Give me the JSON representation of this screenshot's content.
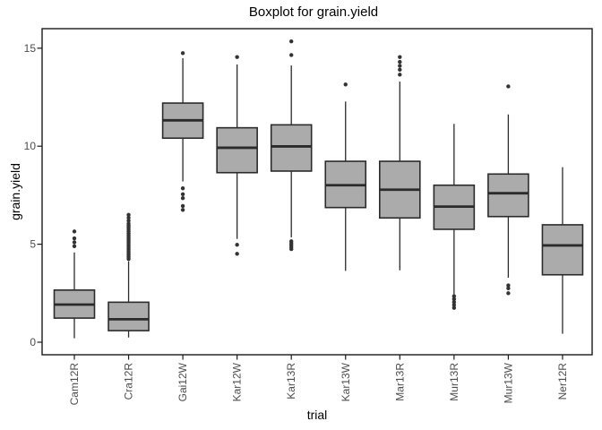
{
  "title": "Boxplot for grain.yield",
  "chart_data": {
    "type": "boxplot",
    "title": "Boxplot for grain.yield",
    "xlabel": "trial",
    "ylabel": "grain.yield",
    "ylim": [
      -0.64,
      16.0
    ],
    "y_ticks": [
      0,
      5,
      10,
      15
    ],
    "grid": false,
    "legend": "none",
    "colors": {
      "box_fill": "#ababab",
      "box_stroke": "#2b2b2b",
      "whisker": "#2b2b2b",
      "outlier": "#333333",
      "panel_border": "#1a1a1a",
      "axis_text": "#4d4d4d",
      "title_text": "#000000"
    },
    "categories": [
      "Cam12R",
      "Cra12R",
      "Gai12W",
      "Kar12W",
      "Kar13R",
      "Kar13W",
      "Mar13R",
      "Mur13R",
      "Mur13W",
      "Ner12R"
    ],
    "series": [
      {
        "trial": "Cam12R",
        "whisker_low": 0.2,
        "q1": 1.23,
        "median": 1.92,
        "q3": 2.66,
        "whisker_high": 4.58,
        "outliers": [
          4.9,
          5.1,
          5.3,
          5.65
        ]
      },
      {
        "trial": "Cra12R",
        "whisker_low": 0.24,
        "q1": 0.59,
        "median": 1.17,
        "q3": 2.04,
        "whisker_high": 4.13,
        "outliers": [
          4.25,
          4.35,
          4.45,
          4.55,
          4.65,
          4.75,
          4.85,
          4.95,
          5.05,
          5.15,
          5.25,
          5.35,
          5.45,
          5.55,
          5.65,
          5.75,
          5.85,
          5.95,
          6.05,
          6.2,
          6.35,
          6.5
        ]
      },
      {
        "trial": "Gai12W",
        "whisker_low": 8.2,
        "q1": 10.41,
        "median": 11.32,
        "q3": 12.2,
        "whisker_high": 14.49,
        "outliers": [
          14.75,
          7.85,
          7.55,
          7.35,
          6.95,
          6.75
        ]
      },
      {
        "trial": "Kar12W",
        "whisker_low": 5.27,
        "q1": 8.65,
        "median": 9.92,
        "q3": 10.94,
        "whisker_high": 14.17,
        "outliers": [
          14.55,
          4.97,
          4.51
        ]
      },
      {
        "trial": "Kar13R",
        "whisker_low": 5.35,
        "q1": 8.73,
        "median": 9.99,
        "q3": 11.09,
        "whisker_high": 14.12,
        "outliers": [
          15.35,
          14.65,
          5.15,
          5.05,
          4.95,
          4.85,
          4.75
        ]
      },
      {
        "trial": "Kar13W",
        "whisker_low": 3.64,
        "q1": 6.87,
        "median": 8.01,
        "q3": 9.23,
        "whisker_high": 12.28,
        "outliers": [
          13.15
        ]
      },
      {
        "trial": "Mar13R",
        "whisker_low": 3.67,
        "q1": 6.34,
        "median": 7.78,
        "q3": 9.23,
        "whisker_high": 13.3,
        "outliers": [
          14.55,
          14.3,
          14.1,
          13.9,
          13.65
        ]
      },
      {
        "trial": "Mur13R",
        "whisker_low": 2.45,
        "q1": 5.76,
        "median": 6.92,
        "q3": 8.01,
        "whisker_high": 11.14,
        "outliers": [
          2.35,
          2.2,
          2.05,
          1.9,
          1.75
        ]
      },
      {
        "trial": "Mur13W",
        "whisker_low": 3.29,
        "q1": 6.41,
        "median": 7.6,
        "q3": 8.58,
        "whisker_high": 11.62,
        "outliers": [
          13.05,
          2.9,
          2.75,
          2.5
        ]
      },
      {
        "trial": "Ner12R",
        "whisker_low": 0.43,
        "q1": 3.44,
        "median": 4.94,
        "q3": 5.99,
        "whisker_high": 8.93,
        "outliers": []
      }
    ]
  }
}
